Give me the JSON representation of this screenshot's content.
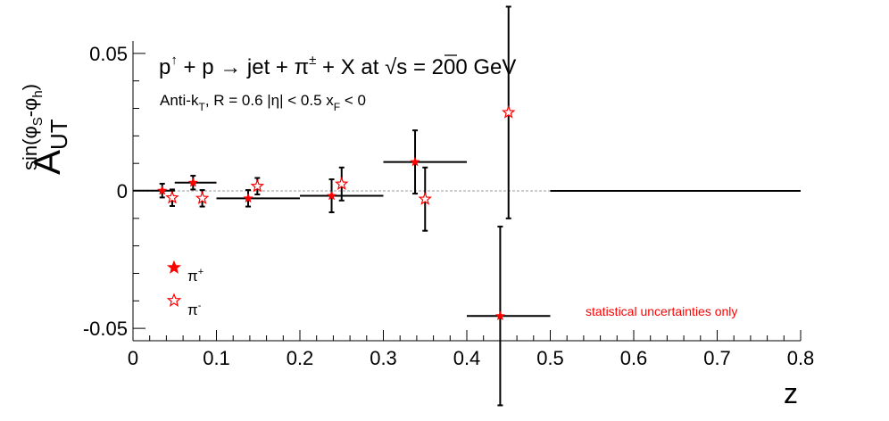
{
  "chart_data": {
    "type": "scatter",
    "title_base": "p",
    "title_up": "↑",
    "title_mid": " + p → jet + π",
    "title_pm": "±",
    "title_x": " + X at ",
    "title_sqrt": "√",
    "title_end": "s = 200 GeV",
    "subtitle_a": "Anti-k",
    "subtitle_t": "T",
    "subtitle_b": ", R = 0.6   |η| < 0.5   x",
    "subtitle_f": "F",
    "subtitle_c": " < 0",
    "ylabel_main": "A",
    "ylabel_sub": "UT",
    "ylabel_sup": "sin(φ",
    "ylabel_sup_s": "S",
    "ylabel_sup_mid": "-φ",
    "ylabel_sup_h": "h",
    "ylabel_sup_end": ")",
    "xlabel": "z",
    "xlim": [
      0,
      0.8
    ],
    "ylim": [
      -0.0545,
      0.0545
    ],
    "x_ticks": [
      "0",
      "0.1",
      "0.2",
      "0.3",
      "0.4",
      "0.5",
      "0.6",
      "0.7",
      "0.8"
    ],
    "x_tick_values": [
      0,
      0.1,
      0.2,
      0.3,
      0.4,
      0.5,
      0.6,
      0.7,
      0.8
    ],
    "y_ticks": [
      "0.05",
      "0",
      "-0.05"
    ],
    "y_tick_values": [
      0.05,
      0,
      -0.05
    ],
    "annotation": "statistical uncertainties only",
    "colors": {
      "marker": "#ff0000",
      "errorbar": "#000000",
      "reference": "#bbbbbb",
      "annotation": "#ff0000"
    },
    "series": [
      {
        "name": "π",
        "name_sup": "+",
        "marker": "filled-star",
        "points": [
          {
            "x": 0.035,
            "y": 0.0001,
            "xerr_lo": 0.035,
            "xerr_hi": 0.015,
            "yerr": 0.0025
          },
          {
            "x": 0.072,
            "y": 0.003,
            "xerr_lo": 0.022,
            "xerr_hi": 0.028,
            "yerr": 0.0025
          },
          {
            "x": 0.138,
            "y": -0.0027,
            "xerr_lo": 0.038,
            "xerr_hi": 0.062,
            "yerr": 0.003
          },
          {
            "x": 0.238,
            "y": -0.0018,
            "xerr_lo": 0.038,
            "xerr_hi": 0.062,
            "yerr": 0.006
          },
          {
            "x": 0.338,
            "y": 0.0105,
            "xerr_lo": 0.038,
            "xerr_hi": 0.062,
            "yerr": 0.0115
          },
          {
            "x": 0.44,
            "y": -0.0455,
            "xerr_lo": 0.04,
            "xerr_hi": 0.06,
            "yerr": 0.0325
          },
          {
            "x": 0.65,
            "y": 0.0,
            "xerr_lo": 0.15,
            "xerr_hi": 0.15,
            "yerr": 0.0
          }
        ]
      },
      {
        "name": "π",
        "name_sup": "-",
        "marker": "open-star",
        "points": [
          {
            "x": 0.047,
            "y": -0.0025,
            "yerr": 0.003
          },
          {
            "x": 0.083,
            "y": -0.0027,
            "yerr": 0.003
          },
          {
            "x": 0.149,
            "y": 0.0017,
            "yerr": 0.003
          },
          {
            "x": 0.25,
            "y": 0.0025,
            "yerr": 0.006
          },
          {
            "x": 0.35,
            "y": -0.003,
            "yerr": 0.0115
          },
          {
            "x": 0.45,
            "y": 0.0285,
            "yerr": 0.0385
          }
        ]
      }
    ]
  }
}
